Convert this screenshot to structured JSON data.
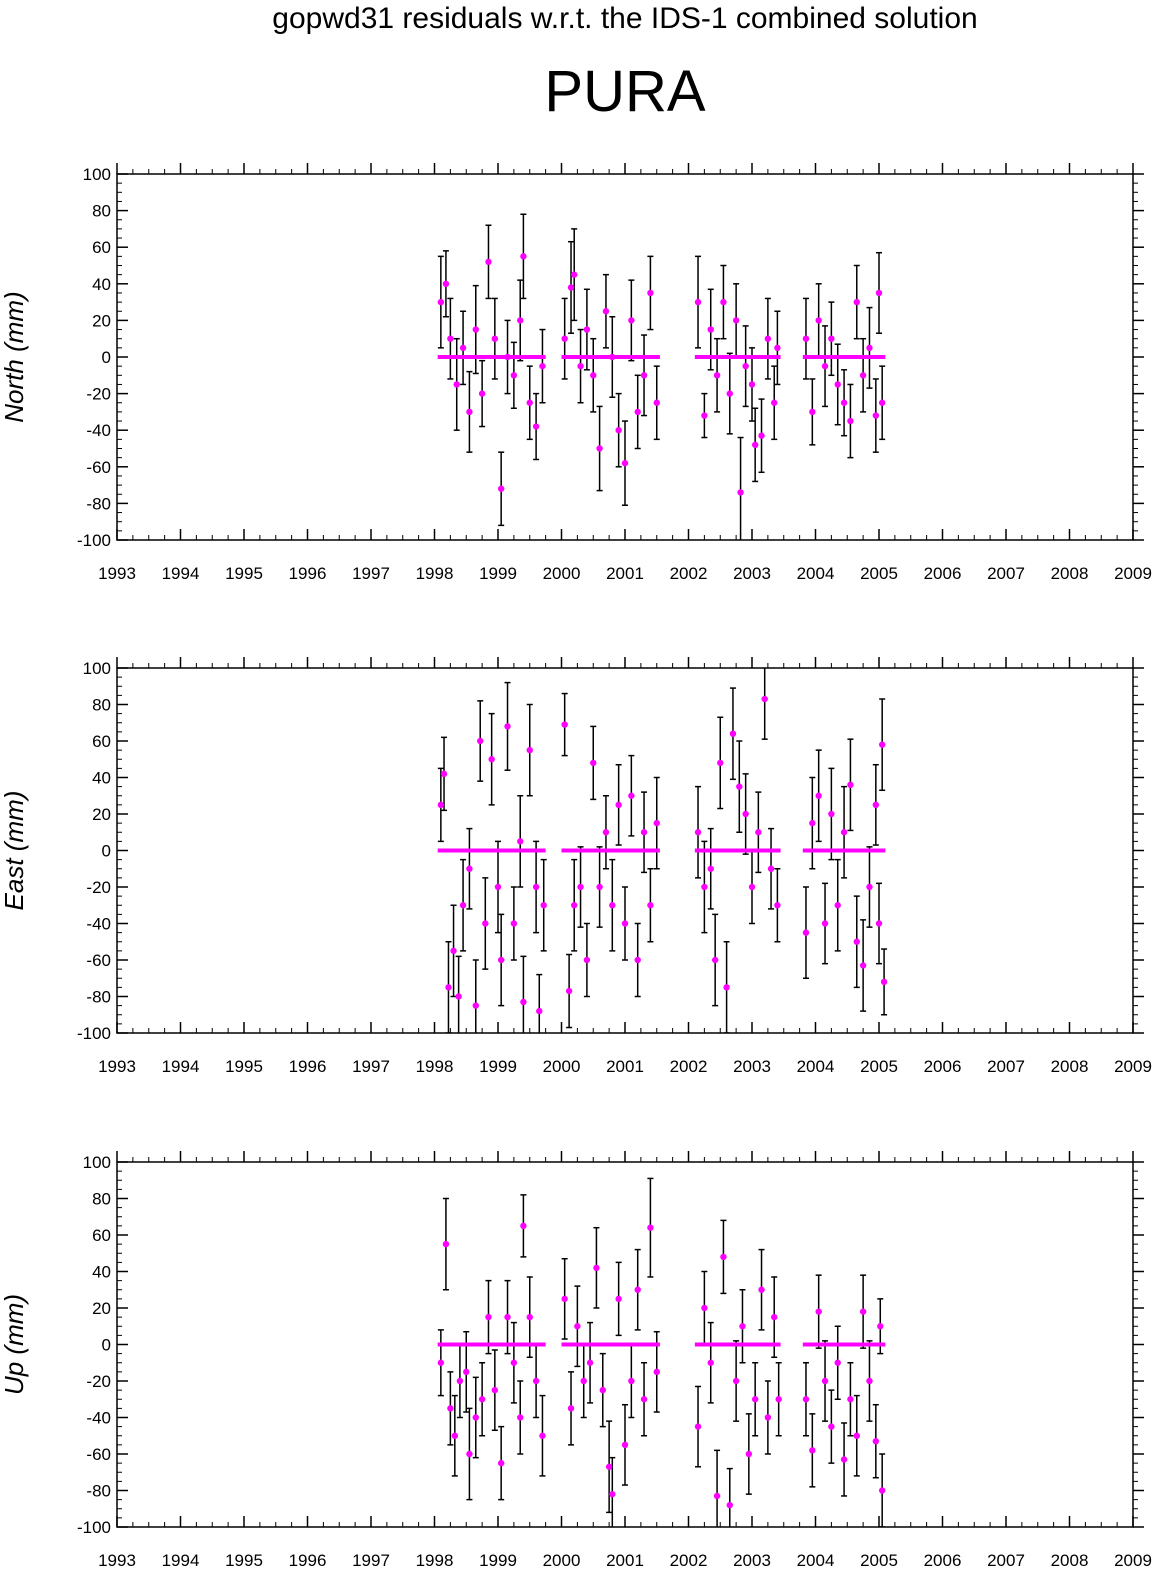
{
  "header": {
    "title": "gopwd31 residuals w.r.t. the IDS-1 combined solution",
    "station": "PURA"
  },
  "colors": {
    "marker": "#ff00ff",
    "errorbar": "#000000",
    "axes": "#000000"
  },
  "chart_data": [
    {
      "type": "scatter",
      "ylabel": "North (mm)",
      "xlim": [
        1993,
        2009
      ],
      "ylim": [
        -100,
        100
      ],
      "xticks": [
        "1993",
        "1994",
        "1995",
        "1996",
        "1997",
        "1998",
        "1999",
        "2000",
        "2001",
        "2002",
        "2003",
        "2004",
        "2005",
        "2006",
        "2007",
        "2008",
        "2009"
      ],
      "yticks": [
        "100",
        "80",
        "60",
        "40",
        "20",
        "0",
        "-20",
        "-40",
        "-60",
        "-80",
        "-100"
      ],
      "mean_segments": [
        [
          1998.05,
          1999.75
        ],
        [
          2000.0,
          2001.55
        ],
        [
          2002.1,
          2003.45
        ],
        [
          2003.8,
          2005.1
        ]
      ],
      "points": [
        [
          1998.1,
          30,
          25
        ],
        [
          1998.18,
          40,
          18
        ],
        [
          1998.25,
          10,
          22
        ],
        [
          1998.35,
          -15,
          25
        ],
        [
          1998.45,
          5,
          20
        ],
        [
          1998.55,
          -30,
          22
        ],
        [
          1998.65,
          15,
          24
        ],
        [
          1998.75,
          -20,
          18
        ],
        [
          1998.85,
          52,
          20
        ],
        [
          1998.95,
          10,
          22
        ],
        [
          1999.05,
          -72,
          20
        ],
        [
          1999.15,
          0,
          20
        ],
        [
          1999.25,
          -10,
          18
        ],
        [
          1999.35,
          20,
          22
        ],
        [
          1999.4,
          55,
          23
        ],
        [
          1999.5,
          -25,
          20
        ],
        [
          1999.6,
          -38,
          18
        ],
        [
          1999.7,
          -5,
          20
        ],
        [
          2000.05,
          10,
          22
        ],
        [
          2000.15,
          38,
          25
        ],
        [
          2000.2,
          45,
          25
        ],
        [
          2000.3,
          -5,
          20
        ],
        [
          2000.4,
          15,
          22
        ],
        [
          2000.5,
          -10,
          20
        ],
        [
          2000.6,
          -50,
          23
        ],
        [
          2000.7,
          25,
          20
        ],
        [
          2000.8,
          0,
          22
        ],
        [
          2000.9,
          -40,
          20
        ],
        [
          2001.0,
          -58,
          23
        ],
        [
          2001.1,
          20,
          22
        ],
        [
          2001.2,
          -30,
          20
        ],
        [
          2001.3,
          -10,
          22
        ],
        [
          2001.4,
          35,
          20
        ],
        [
          2001.5,
          -25,
          20
        ],
        [
          2002.15,
          30,
          25
        ],
        [
          2002.25,
          -32,
          12
        ],
        [
          2002.35,
          15,
          22
        ],
        [
          2002.45,
          -10,
          20
        ],
        [
          2002.55,
          30,
          20
        ],
        [
          2002.65,
          -20,
          22
        ],
        [
          2002.75,
          20,
          20
        ],
        [
          2002.82,
          -74,
          30
        ],
        [
          2002.9,
          -5,
          22
        ],
        [
          2003.0,
          -15,
          20
        ],
        [
          2003.05,
          -48,
          20
        ],
        [
          2003.15,
          -43,
          20
        ],
        [
          2003.25,
          10,
          22
        ],
        [
          2003.35,
          -25,
          20
        ],
        [
          2003.4,
          5,
          20
        ],
        [
          2003.85,
          10,
          22
        ],
        [
          2003.95,
          -30,
          18
        ],
        [
          2004.05,
          20,
          20
        ],
        [
          2004.15,
          -5,
          22
        ],
        [
          2004.25,
          10,
          20
        ],
        [
          2004.35,
          -15,
          22
        ],
        [
          2004.45,
          -25,
          18
        ],
        [
          2004.55,
          -35,
          20
        ],
        [
          2004.65,
          30,
          20
        ],
        [
          2004.75,
          -10,
          20
        ],
        [
          2004.85,
          5,
          22
        ],
        [
          2004.95,
          -32,
          20
        ],
        [
          2005.0,
          35,
          22
        ],
        [
          2005.05,
          -25,
          20
        ]
      ]
    },
    {
      "type": "scatter",
      "ylabel": "East (mm)",
      "xlim": [
        1993,
        2009
      ],
      "ylim": [
        -100,
        100
      ],
      "xticks": [
        "1993",
        "1994",
        "1995",
        "1996",
        "1997",
        "1998",
        "1999",
        "2000",
        "2001",
        "2002",
        "2003",
        "2004",
        "2005",
        "2006",
        "2007",
        "2008",
        "2009"
      ],
      "yticks": [
        "100",
        "80",
        "60",
        "40",
        "20",
        "0",
        "-20",
        "-40",
        "-60",
        "-80",
        "-100"
      ],
      "mean_segments": [
        [
          1998.05,
          1999.75
        ],
        [
          2000.0,
          2001.55
        ],
        [
          2002.1,
          2003.45
        ],
        [
          2003.8,
          2005.1
        ]
      ],
      "points": [
        [
          1998.1,
          25,
          20
        ],
        [
          1998.15,
          42,
          20
        ],
        [
          1998.22,
          -75,
          25
        ],
        [
          1998.3,
          -55,
          25
        ],
        [
          1998.38,
          -80,
          22
        ],
        [
          1998.45,
          -30,
          25
        ],
        [
          1998.55,
          -10,
          22
        ],
        [
          1998.65,
          -85,
          25
        ],
        [
          1998.72,
          60,
          22
        ],
        [
          1998.8,
          -40,
          25
        ],
        [
          1998.9,
          50,
          25
        ],
        [
          1999.0,
          -20,
          25
        ],
        [
          1999.05,
          -60,
          25
        ],
        [
          1999.15,
          68,
          24
        ],
        [
          1999.25,
          -40,
          20
        ],
        [
          1999.35,
          5,
          25
        ],
        [
          1999.4,
          -83,
          25
        ],
        [
          1999.5,
          55,
          25
        ],
        [
          1999.6,
          -20,
          25
        ],
        [
          1999.65,
          -88,
          20
        ],
        [
          1999.72,
          -30,
          25
        ],
        [
          2000.05,
          69,
          17
        ],
        [
          2000.12,
          -77,
          20
        ],
        [
          2000.2,
          -30,
          25
        ],
        [
          2000.3,
          -20,
          22
        ],
        [
          2000.4,
          -60,
          20
        ],
        [
          2000.5,
          48,
          20
        ],
        [
          2000.6,
          -20,
          22
        ],
        [
          2000.7,
          10,
          20
        ],
        [
          2000.8,
          -30,
          25
        ],
        [
          2000.9,
          25,
          22
        ],
        [
          2001.0,
          -40,
          20
        ],
        [
          2001.1,
          30,
          22
        ],
        [
          2001.2,
          -60,
          20
        ],
        [
          2001.3,
          10,
          22
        ],
        [
          2001.4,
          -30,
          20
        ],
        [
          2001.5,
          15,
          25
        ],
        [
          2002.15,
          10,
          25
        ],
        [
          2002.25,
          -20,
          25
        ],
        [
          2002.35,
          -10,
          22
        ],
        [
          2002.42,
          -60,
          25
        ],
        [
          2002.5,
          48,
          25
        ],
        [
          2002.6,
          -75,
          25
        ],
        [
          2002.7,
          64,
          25
        ],
        [
          2002.8,
          35,
          25
        ],
        [
          2002.9,
          20,
          22
        ],
        [
          2003.0,
          -20,
          20
        ],
        [
          2003.1,
          10,
          22
        ],
        [
          2003.2,
          83,
          22
        ],
        [
          2003.3,
          -10,
          22
        ],
        [
          2003.4,
          -30,
          20
        ],
        [
          2003.85,
          -45,
          25
        ],
        [
          2003.95,
          15,
          25
        ],
        [
          2004.05,
          30,
          25
        ],
        [
          2004.15,
          -40,
          22
        ],
        [
          2004.25,
          20,
          25
        ],
        [
          2004.35,
          -30,
          25
        ],
        [
          2004.45,
          10,
          25
        ],
        [
          2004.55,
          36,
          25
        ],
        [
          2004.65,
          -50,
          25
        ],
        [
          2004.75,
          -63,
          25
        ],
        [
          2004.85,
          -20,
          22
        ],
        [
          2004.95,
          25,
          22
        ],
        [
          2005.0,
          -40,
          22
        ],
        [
          2005.05,
          58,
          25
        ],
        [
          2005.08,
          -72,
          18
        ]
      ]
    },
    {
      "type": "scatter",
      "ylabel": "Up (mm)",
      "xlim": [
        1993,
        2009
      ],
      "ylim": [
        -100,
        100
      ],
      "xticks": [
        "1993",
        "1994",
        "1995",
        "1996",
        "1997",
        "1998",
        "1999",
        "2000",
        "2001",
        "2002",
        "2003",
        "2004",
        "2005",
        "2006",
        "2007",
        "2008",
        "2009"
      ],
      "yticks": [
        "100",
        "80",
        "60",
        "40",
        "20",
        "0",
        "-20",
        "-40",
        "-60",
        "-80",
        "-100"
      ],
      "mean_segments": [
        [
          1998.05,
          1999.75
        ],
        [
          2000.0,
          2001.55
        ],
        [
          2002.1,
          2003.45
        ],
        [
          2003.8,
          2005.1
        ]
      ],
      "points": [
        [
          1998.1,
          -10,
          18
        ],
        [
          1998.18,
          55,
          25
        ],
        [
          1998.25,
          -35,
          20
        ],
        [
          1998.32,
          -50,
          22
        ],
        [
          1998.4,
          -20,
          20
        ],
        [
          1998.5,
          -15,
          22
        ],
        [
          1998.55,
          -60,
          25
        ],
        [
          1998.65,
          -40,
          22
        ],
        [
          1998.75,
          -30,
          20
        ],
        [
          1998.85,
          15,
          20
        ],
        [
          1998.95,
          -25,
          22
        ],
        [
          1999.05,
          -65,
          20
        ],
        [
          1999.15,
          15,
          20
        ],
        [
          1999.25,
          -10,
          22
        ],
        [
          1999.35,
          -40,
          20
        ],
        [
          1999.4,
          65,
          17
        ],
        [
          1999.5,
          15,
          22
        ],
        [
          1999.6,
          -20,
          20
        ],
        [
          1999.7,
          -50,
          22
        ],
        [
          2000.05,
          25,
          22
        ],
        [
          2000.15,
          -35,
          20
        ],
        [
          2000.25,
          10,
          22
        ],
        [
          2000.35,
          -20,
          20
        ],
        [
          2000.45,
          -10,
          22
        ],
        [
          2000.55,
          42,
          22
        ],
        [
          2000.65,
          -25,
          20
        ],
        [
          2000.75,
          -67,
          25
        ],
        [
          2000.8,
          -82,
          20
        ],
        [
          2000.9,
          25,
          20
        ],
        [
          2001.0,
          -55,
          22
        ],
        [
          2001.1,
          -20,
          20
        ],
        [
          2001.2,
          30,
          22
        ],
        [
          2001.3,
          -30,
          20
        ],
        [
          2001.4,
          64,
          27
        ],
        [
          2001.5,
          -15,
          22
        ],
        [
          2002.15,
          -45,
          22
        ],
        [
          2002.25,
          20,
          20
        ],
        [
          2002.35,
          -10,
          22
        ],
        [
          2002.45,
          -83,
          25
        ],
        [
          2002.55,
          48,
          20
        ],
        [
          2002.65,
          -88,
          20
        ],
        [
          2002.75,
          -20,
          22
        ],
        [
          2002.85,
          10,
          20
        ],
        [
          2002.95,
          -60,
          22
        ],
        [
          2003.05,
          -30,
          20
        ],
        [
          2003.15,
          30,
          22
        ],
        [
          2003.25,
          -40,
          20
        ],
        [
          2003.35,
          15,
          22
        ],
        [
          2003.42,
          -30,
          20
        ],
        [
          2003.85,
          -30,
          20
        ],
        [
          2003.95,
          -58,
          20
        ],
        [
          2004.05,
          18,
          20
        ],
        [
          2004.15,
          -20,
          22
        ],
        [
          2004.25,
          -45,
          20
        ],
        [
          2004.35,
          -10,
          20
        ],
        [
          2004.45,
          -63,
          20
        ],
        [
          2004.55,
          -30,
          20
        ],
        [
          2004.65,
          -50,
          22
        ],
        [
          2004.75,
          18,
          20
        ],
        [
          2004.85,
          -20,
          22
        ],
        [
          2004.95,
          -53,
          20
        ],
        [
          2005.02,
          10,
          15
        ],
        [
          2005.05,
          -80,
          20
        ]
      ]
    }
  ]
}
